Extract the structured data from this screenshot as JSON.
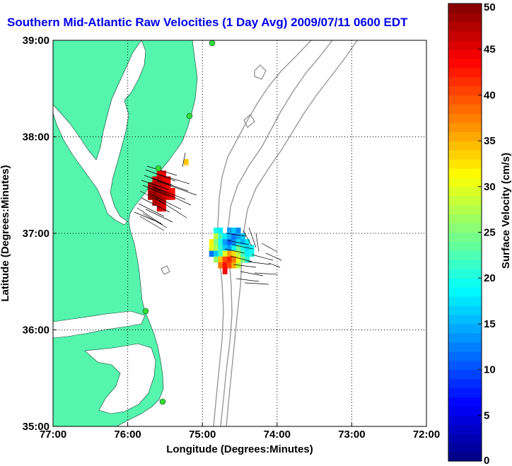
{
  "chart_data": {
    "type": "heatmap",
    "title": "Southern Mid-Atlantic Raw Velocities (1 Day Avg) 2009/07/11 0600 EDT",
    "xlabel": "Longitude (Degrees:Minutes)",
    "ylabel": "Latitude (Degrees:Minutes)",
    "x_ticks": [
      {
        "value": -77,
        "label": "77:00"
      },
      {
        "value": -76,
        "label": "76:00"
      },
      {
        "value": -75,
        "label": "75:00"
      },
      {
        "value": -74,
        "label": "74:00"
      },
      {
        "value": -73,
        "label": "73:00"
      },
      {
        "value": -72,
        "label": "72:00"
      }
    ],
    "y_ticks": [
      {
        "value": 35,
        "label": "35:00"
      },
      {
        "value": 36,
        "label": "36:00"
      },
      {
        "value": 37,
        "label": "37:00"
      },
      {
        "value": 38,
        "label": "38:00"
      },
      {
        "value": 39,
        "label": "39:00"
      }
    ],
    "xlim": [
      -77,
      -72
    ],
    "ylim": [
      35,
      39
    ],
    "grid": true,
    "colorbar": {
      "label": "Surface Velocity (cm/s)",
      "range": [
        0,
        50
      ],
      "ticks": [
        {
          "value": 0,
          "label": "0"
        },
        {
          "value": 5,
          "label": "5"
        },
        {
          "value": 10,
          "label": "10"
        },
        {
          "value": 15,
          "label": "15"
        },
        {
          "value": 20,
          "label": "20"
        },
        {
          "value": 25,
          "label": "25"
        },
        {
          "value": 30,
          "label": "30"
        },
        {
          "value": 35,
          "label": "35"
        },
        {
          "value": 40,
          "label": "40"
        },
        {
          "value": 45,
          "label": "45"
        },
        {
          "value": 50,
          "label": "50"
        }
      ],
      "colormap": "jet"
    },
    "colors": {
      "land": "#55f5ad",
      "contour": "#999999",
      "station": "#33dd33",
      "title": "#0000ee"
    },
    "cells": [
      {
        "lon": -75.58,
        "lat": 37.62,
        "v": 45
      },
      {
        "lon": -75.52,
        "lat": 37.62,
        "v": 44
      },
      {
        "lon": -75.64,
        "lat": 37.56,
        "v": 46
      },
      {
        "lon": -75.58,
        "lat": 37.56,
        "v": 47
      },
      {
        "lon": -75.52,
        "lat": 37.56,
        "v": 45
      },
      {
        "lon": -75.46,
        "lat": 37.56,
        "v": 44
      },
      {
        "lon": -75.7,
        "lat": 37.5,
        "v": 47
      },
      {
        "lon": -75.64,
        "lat": 37.5,
        "v": 48
      },
      {
        "lon": -75.58,
        "lat": 37.5,
        "v": 47
      },
      {
        "lon": -75.52,
        "lat": 37.5,
        "v": 46
      },
      {
        "lon": -75.46,
        "lat": 37.5,
        "v": 44
      },
      {
        "lon": -75.7,
        "lat": 37.44,
        "v": 48
      },
      {
        "lon": -75.64,
        "lat": 37.44,
        "v": 49
      },
      {
        "lon": -75.58,
        "lat": 37.44,
        "v": 48
      },
      {
        "lon": -75.52,
        "lat": 37.44,
        "v": 46
      },
      {
        "lon": -75.46,
        "lat": 37.44,
        "v": 45
      },
      {
        "lon": -75.4,
        "lat": 37.44,
        "v": 43
      },
      {
        "lon": -75.7,
        "lat": 37.38,
        "v": 48
      },
      {
        "lon": -75.64,
        "lat": 37.38,
        "v": 49
      },
      {
        "lon": -75.58,
        "lat": 37.38,
        "v": 48
      },
      {
        "lon": -75.52,
        "lat": 37.38,
        "v": 47
      },
      {
        "lon": -75.46,
        "lat": 37.38,
        "v": 45
      },
      {
        "lon": -75.4,
        "lat": 37.38,
        "v": 44
      },
      {
        "lon": -75.64,
        "lat": 37.32,
        "v": 47
      },
      {
        "lon": -75.58,
        "lat": 37.32,
        "v": 47
      },
      {
        "lon": -75.52,
        "lat": 37.32,
        "v": 46
      },
      {
        "lon": -75.58,
        "lat": 37.26,
        "v": 46
      },
      {
        "lon": -75.52,
        "lat": 37.26,
        "v": 45
      },
      {
        "lon": -75.22,
        "lat": 37.74,
        "v": 34
      },
      {
        "lon": -74.82,
        "lat": 37.03,
        "v": 20
      },
      {
        "lon": -74.76,
        "lat": 37.03,
        "v": 18
      },
      {
        "lon": -74.64,
        "lat": 37.03,
        "v": 14
      },
      {
        "lon": -74.58,
        "lat": 37.03,
        "v": 16
      },
      {
        "lon": -74.52,
        "lat": 37.03,
        "v": 13
      },
      {
        "lon": -74.82,
        "lat": 36.97,
        "v": 28
      },
      {
        "lon": -74.76,
        "lat": 36.97,
        "v": 22
      },
      {
        "lon": -74.7,
        "lat": 36.97,
        "v": 18
      },
      {
        "lon": -74.64,
        "lat": 36.97,
        "v": 15
      },
      {
        "lon": -74.58,
        "lat": 36.97,
        "v": 12
      },
      {
        "lon": -74.52,
        "lat": 36.97,
        "v": 14
      },
      {
        "lon": -74.46,
        "lat": 36.97,
        "v": 16
      },
      {
        "lon": -74.88,
        "lat": 36.91,
        "v": 32
      },
      {
        "lon": -74.82,
        "lat": 36.91,
        "v": 25
      },
      {
        "lon": -74.76,
        "lat": 36.91,
        "v": 20
      },
      {
        "lon": -74.7,
        "lat": 36.91,
        "v": 14
      },
      {
        "lon": -74.64,
        "lat": 36.91,
        "v": 11
      },
      {
        "lon": -74.58,
        "lat": 36.91,
        "v": 13
      },
      {
        "lon": -74.52,
        "lat": 36.91,
        "v": 17
      },
      {
        "lon": -74.46,
        "lat": 36.91,
        "v": 15
      },
      {
        "lon": -74.4,
        "lat": 36.91,
        "v": 18
      },
      {
        "lon": -74.88,
        "lat": 36.85,
        "v": 30
      },
      {
        "lon": -74.82,
        "lat": 36.85,
        "v": 27
      },
      {
        "lon": -74.76,
        "lat": 36.85,
        "v": 21
      },
      {
        "lon": -74.7,
        "lat": 36.85,
        "v": 16
      },
      {
        "lon": -74.64,
        "lat": 36.85,
        "v": 14
      },
      {
        "lon": -74.58,
        "lat": 36.85,
        "v": 19
      },
      {
        "lon": -74.52,
        "lat": 36.85,
        "v": 24
      },
      {
        "lon": -74.46,
        "lat": 36.85,
        "v": 20
      },
      {
        "lon": -74.4,
        "lat": 36.85,
        "v": 17
      },
      {
        "lon": -74.34,
        "lat": 36.85,
        "v": 19
      },
      {
        "lon": -74.88,
        "lat": 36.79,
        "v": 12
      },
      {
        "lon": -74.82,
        "lat": 36.79,
        "v": 16
      },
      {
        "lon": -74.76,
        "lat": 36.79,
        "v": 22
      },
      {
        "lon": -74.7,
        "lat": 36.79,
        "v": 30
      },
      {
        "lon": -74.64,
        "lat": 36.79,
        "v": 36
      },
      {
        "lon": -74.58,
        "lat": 36.79,
        "v": 33
      },
      {
        "lon": -74.52,
        "lat": 36.79,
        "v": 28
      },
      {
        "lon": -74.46,
        "lat": 36.79,
        "v": 22
      },
      {
        "lon": -74.4,
        "lat": 36.79,
        "v": 18
      },
      {
        "lon": -74.34,
        "lat": 36.79,
        "v": 20
      },
      {
        "lon": -74.82,
        "lat": 36.73,
        "v": 26
      },
      {
        "lon": -74.76,
        "lat": 36.73,
        "v": 34
      },
      {
        "lon": -74.7,
        "lat": 36.73,
        "v": 40
      },
      {
        "lon": -74.64,
        "lat": 36.73,
        "v": 42
      },
      {
        "lon": -74.58,
        "lat": 36.73,
        "v": 38
      },
      {
        "lon": -74.52,
        "lat": 36.73,
        "v": 31
      },
      {
        "lon": -74.46,
        "lat": 36.73,
        "v": 25
      },
      {
        "lon": -74.4,
        "lat": 36.73,
        "v": 21
      },
      {
        "lon": -74.76,
        "lat": 36.67,
        "v": 38
      },
      {
        "lon": -74.7,
        "lat": 36.67,
        "v": 43
      },
      {
        "lon": -74.64,
        "lat": 36.67,
        "v": 40
      },
      {
        "lon": -74.58,
        "lat": 36.67,
        "v": 35
      },
      {
        "lon": -74.52,
        "lat": 36.67,
        "v": 28
      },
      {
        "lon": -74.7,
        "lat": 36.61,
        "v": 44
      }
    ]
  }
}
